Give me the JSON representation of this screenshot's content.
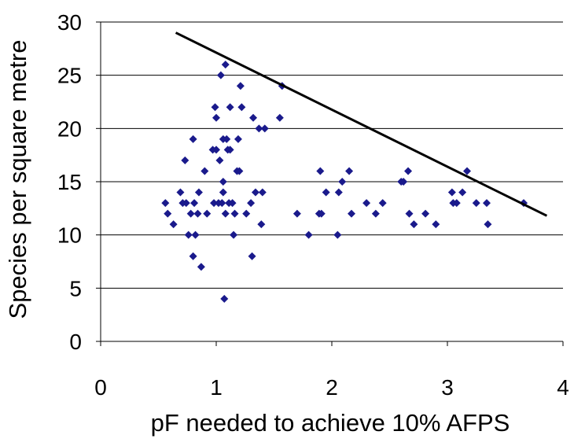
{
  "chart_data": {
    "type": "scatter",
    "title": "",
    "xlabel": "pF needed to achieve 10% AFPS",
    "ylabel": "Species per square metre",
    "xlim": [
      0,
      4
    ],
    "ylim": [
      0,
      30
    ],
    "x_ticks": [
      0,
      1,
      2,
      3,
      4
    ],
    "y_ticks": [
      0,
      5,
      10,
      15,
      20,
      25,
      30
    ],
    "grid": "horizontal",
    "legend": "none",
    "marker": "diamond",
    "colors": {
      "points": "#1a1a8c",
      "line": "#000000",
      "grid": "#000000",
      "axis": "#000000"
    },
    "series": [
      {
        "type": "scatter",
        "points": [
          [
            0.56,
            13
          ],
          [
            0.58,
            12
          ],
          [
            0.63,
            11
          ],
          [
            0.69,
            14
          ],
          [
            0.71,
            13
          ],
          [
            0.73,
            17
          ],
          [
            0.74,
            13
          ],
          [
            0.76,
            10
          ],
          [
            0.78,
            12
          ],
          [
            0.8,
            19
          ],
          [
            0.8,
            8
          ],
          [
            0.81,
            13
          ],
          [
            0.82,
            10
          ],
          [
            0.84,
            12
          ],
          [
            0.85,
            14
          ],
          [
            0.87,
            7
          ],
          [
            0.9,
            16
          ],
          [
            0.92,
            12
          ],
          [
            0.97,
            18
          ],
          [
            0.98,
            13
          ],
          [
            0.99,
            22
          ],
          [
            1.0,
            18
          ],
          [
            1.0,
            21
          ],
          [
            1.02,
            13
          ],
          [
            1.03,
            17
          ],
          [
            1.04,
            25
          ],
          [
            1.05,
            13
          ],
          [
            1.06,
            19
          ],
          [
            1.06,
            15
          ],
          [
            1.06,
            14
          ],
          [
            1.07,
            4
          ],
          [
            1.08,
            26
          ],
          [
            1.08,
            12
          ],
          [
            1.09,
            19
          ],
          [
            1.1,
            18
          ],
          [
            1.11,
            13
          ],
          [
            1.12,
            22
          ],
          [
            1.12,
            18
          ],
          [
            1.14,
            13
          ],
          [
            1.15,
            10
          ],
          [
            1.16,
            12
          ],
          [
            1.18,
            16
          ],
          [
            1.19,
            19
          ],
          [
            1.2,
            16
          ],
          [
            1.21,
            24
          ],
          [
            1.22,
            22
          ],
          [
            1.26,
            12
          ],
          [
            1.3,
            13
          ],
          [
            1.31,
            8
          ],
          [
            1.32,
            21
          ],
          [
            1.34,
            14
          ],
          [
            1.37,
            20
          ],
          [
            1.39,
            11
          ],
          [
            1.4,
            14
          ],
          [
            1.42,
            20
          ],
          [
            1.55,
            21
          ],
          [
            1.57,
            24
          ],
          [
            1.7,
            12
          ],
          [
            1.8,
            10
          ],
          [
            1.89,
            12
          ],
          [
            1.9,
            16
          ],
          [
            1.91,
            12
          ],
          [
            1.95,
            14
          ],
          [
            2.05,
            10
          ],
          [
            2.06,
            14
          ],
          [
            2.09,
            15
          ],
          [
            2.15,
            16
          ],
          [
            2.17,
            12
          ],
          [
            2.3,
            13
          ],
          [
            2.38,
            12
          ],
          [
            2.44,
            13
          ],
          [
            2.6,
            15
          ],
          [
            2.62,
            15
          ],
          [
            2.66,
            16
          ],
          [
            2.67,
            12
          ],
          [
            2.71,
            11
          ],
          [
            2.81,
            12
          ],
          [
            2.9,
            11
          ],
          [
            3.04,
            14
          ],
          [
            3.05,
            13
          ],
          [
            3.08,
            13
          ],
          [
            3.13,
            14
          ],
          [
            3.17,
            16
          ],
          [
            3.25,
            13
          ],
          [
            3.34,
            13
          ],
          [
            3.35,
            11
          ],
          [
            3.66,
            13
          ]
        ]
      },
      {
        "type": "line",
        "x": [
          0.65,
          3.86
        ],
        "y": [
          29,
          11.8
        ]
      }
    ]
  }
}
